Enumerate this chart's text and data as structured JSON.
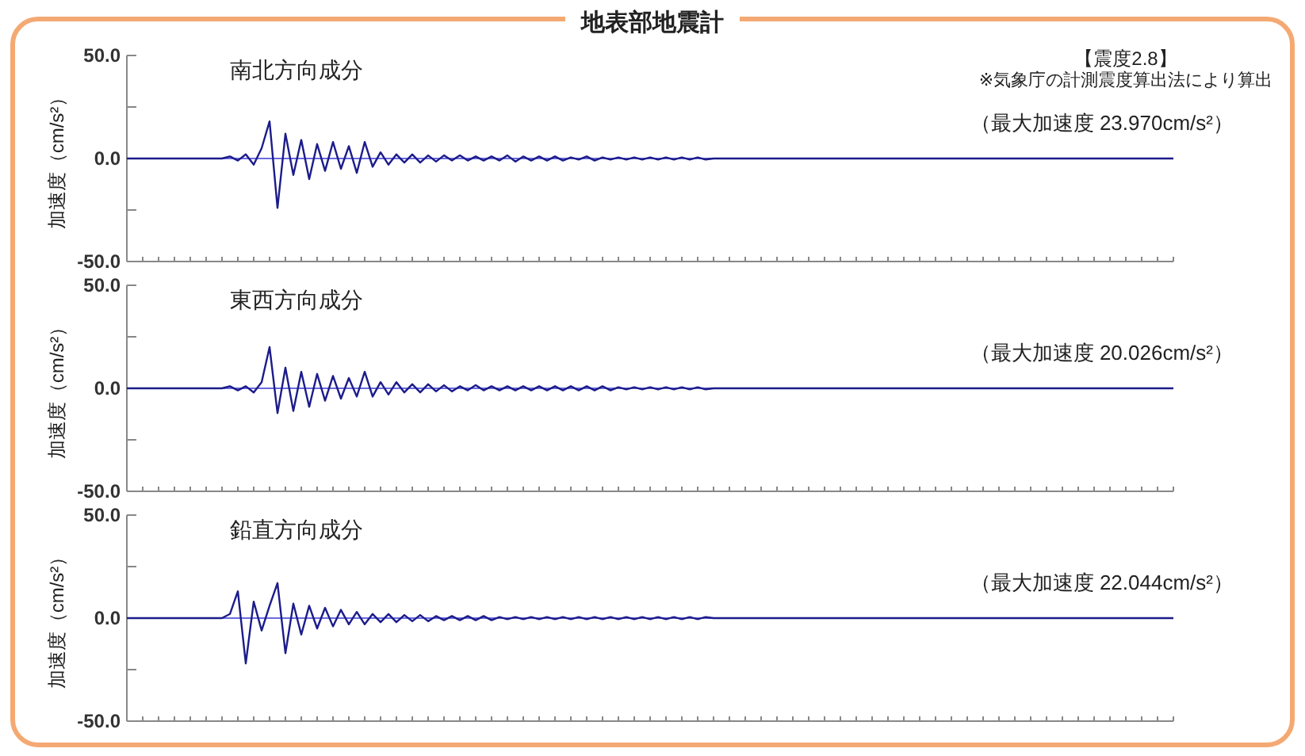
{
  "chart_data": [
    {
      "type": "line",
      "title": "地表部地震計",
      "subtitle": "南北方向成分",
      "ylabel": "加速度（cm/s²）",
      "tick_labels": "y",
      "ylim": [
        -50,
        50
      ],
      "yticks": [
        {
          "value": 50,
          "label": "50.0"
        },
        {
          "value": 25,
          "label": null
        },
        {
          "value": 0,
          "label": "0.0"
        },
        {
          "value": -25,
          "label": null
        },
        {
          "value": -50,
          "label": "-50.0"
        }
      ],
      "annotations": [
        "【震度2.8】",
        "※気象庁の計測震度算出法により算出",
        "（最大加速度 23.970cm/s²）"
      ],
      "ref_lines": [
        {
          "axis": "y",
          "value": 0,
          "color": "#6b6be0"
        }
      ],
      "categories": [
        null,
        null,
        null,
        null,
        null,
        null,
        null,
        null,
        null,
        null,
        null,
        null,
        null,
        null,
        null,
        null,
        null,
        null,
        null,
        null,
        null,
        null,
        null,
        null,
        null,
        null,
        null,
        null,
        null,
        null,
        null,
        null,
        null,
        null,
        null,
        null,
        null,
        null,
        null,
        null,
        null,
        null,
        null,
        null,
        null,
        null,
        null,
        null,
        null,
        null,
        null,
        null,
        null,
        null,
        null,
        null,
        null,
        null,
        null,
        null,
        null,
        null,
        null,
        null,
        null,
        null,
        null,
        null,
        null,
        null,
        null,
        null,
        null,
        null,
        null,
        null,
        null,
        null,
        null,
        null,
        null,
        null,
        null,
        null,
        null,
        null,
        null,
        null,
        null,
        null,
        null,
        null,
        null,
        null,
        null,
        null,
        null,
        null,
        null,
        null,
        null,
        null,
        null,
        null,
        null,
        null,
        null,
        null,
        null,
        null,
        null,
        null,
        null,
        null,
        null,
        null,
        null,
        null,
        null,
        null,
        null,
        null,
        null,
        null,
        null,
        null,
        null,
        null,
        null,
        null,
        null,
        null,
        null
      ],
      "series": [
        {
          "color": "#1c1c8a",
          "values": [
            0,
            0,
            0,
            0,
            0,
            0,
            0,
            0,
            0,
            0,
            0,
            0,
            0,
            1,
            -1,
            2,
            -3,
            5,
            18,
            -24,
            12,
            -8,
            9,
            -10,
            7,
            -6,
            8,
            -5,
            6,
            -7,
            8,
            -4,
            3,
            -3,
            2,
            -2,
            2,
            -2,
            1.5,
            -1.5,
            1.5,
            -1,
            1.5,
            -1,
            1,
            -1,
            1,
            -1,
            1.5,
            -1.5,
            1,
            -1,
            1,
            -1,
            1,
            -1,
            0.5,
            -0.5,
            1,
            -1,
            0.5,
            -0.5,
            0.5,
            -0.5,
            0.5,
            -0.5,
            0.5,
            -0.5,
            0.5,
            -0.5,
            0.5,
            -0.5,
            0.5,
            -0.5,
            0,
            0,
            0,
            0,
            0,
            0,
            0,
            0,
            0,
            0,
            0,
            0,
            0,
            0,
            0,
            0,
            0,
            0,
            0,
            0,
            0,
            0,
            0,
            0,
            0,
            0,
            0,
            0,
            0,
            0,
            0,
            0,
            0,
            0,
            0,
            0,
            0,
            0,
            0,
            0,
            0,
            0,
            0,
            0,
            0,
            0,
            0,
            0,
            0,
            0,
            0,
            0,
            0,
            0,
            0,
            0,
            0,
            0,
            0
          ]
        }
      ]
    },
    {
      "type": "line",
      "subtitle": "東西方向成分",
      "ylabel": "加速度（cm/s²）",
      "tick_labels": "y",
      "ylim": [
        -50,
        50
      ],
      "yticks": [
        {
          "value": 50,
          "label": "50.0"
        },
        {
          "value": 25,
          "label": null
        },
        {
          "value": 0,
          "label": "0.0"
        },
        {
          "value": -25,
          "label": null
        },
        {
          "value": -50,
          "label": "-50.0"
        }
      ],
      "annotations": [
        "（最大加速度 20.026cm/s²）"
      ],
      "ref_lines": [
        {
          "axis": "y",
          "value": 0,
          "color": "#6b6be0"
        }
      ],
      "categories": [
        null,
        null,
        null,
        null,
        null,
        null,
        null,
        null,
        null,
        null,
        null,
        null,
        null,
        null,
        null,
        null,
        null,
        null,
        null,
        null,
        null,
        null,
        null,
        null,
        null,
        null,
        null,
        null,
        null,
        null,
        null,
        null,
        null,
        null,
        null,
        null,
        null,
        null,
        null,
        null,
        null,
        null,
        null,
        null,
        null,
        null,
        null,
        null,
        null,
        null,
        null,
        null,
        null,
        null,
        null,
        null,
        null,
        null,
        null,
        null,
        null,
        null,
        null,
        null,
        null,
        null,
        null,
        null,
        null,
        null,
        null,
        null,
        null,
        null,
        null,
        null,
        null,
        null,
        null,
        null,
        null,
        null,
        null,
        null,
        null,
        null,
        null,
        null,
        null,
        null,
        null,
        null,
        null,
        null,
        null,
        null,
        null,
        null,
        null,
        null,
        null,
        null,
        null,
        null,
        null,
        null,
        null,
        null,
        null,
        null,
        null,
        null,
        null,
        null,
        null,
        null,
        null,
        null,
        null,
        null,
        null,
        null,
        null,
        null,
        null,
        null,
        null,
        null,
        null,
        null,
        null,
        null,
        null
      ],
      "series": [
        {
          "color": "#1c1c8a",
          "values": [
            0,
            0,
            0,
            0,
            0,
            0,
            0,
            0,
            0,
            0,
            0,
            0,
            0,
            1,
            -1,
            1,
            -2,
            3,
            20,
            -12,
            10,
            -11,
            8,
            -9,
            7,
            -6,
            6,
            -5,
            5,
            -4,
            8,
            -4,
            3,
            -3,
            3,
            -2,
            2,
            -2,
            2,
            -1.5,
            1.5,
            -1.5,
            1,
            -1,
            1.5,
            -1,
            1,
            -1,
            1,
            -1,
            1,
            -1,
            1,
            -1,
            1,
            -1,
            1,
            -1,
            1,
            -1,
            1,
            -1,
            0.5,
            -0.5,
            0.5,
            -0.5,
            0.5,
            -0.5,
            0.5,
            -0.5,
            0.5,
            -0.5,
            0.5,
            -0.5,
            0,
            0,
            0,
            0,
            0,
            0,
            0,
            0,
            0,
            0,
            0,
            0,
            0,
            0,
            0,
            0,
            0,
            0,
            0,
            0,
            0,
            0,
            0,
            0,
            0,
            0,
            0,
            0,
            0,
            0,
            0,
            0,
            0,
            0,
            0,
            0,
            0,
            0,
            0,
            0,
            0,
            0,
            0,
            0,
            0,
            0,
            0,
            0,
            0,
            0,
            0,
            0,
            0,
            0,
            0,
            0,
            0,
            0,
            0
          ]
        }
      ]
    },
    {
      "type": "line",
      "subtitle": "鉛直方向成分",
      "ylabel": "加速度（cm/s²）",
      "tick_labels": "y",
      "ylim": [
        -50,
        50
      ],
      "yticks": [
        {
          "value": 50,
          "label": "50.0"
        },
        {
          "value": 25,
          "label": null
        },
        {
          "value": 0,
          "label": "0.0"
        },
        {
          "value": -25,
          "label": null
        },
        {
          "value": -50,
          "label": "-50.0"
        }
      ],
      "annotations": [
        "（最大加速度 22.044cm/s²）"
      ],
      "ref_lines": [
        {
          "axis": "y",
          "value": 0,
          "color": "#6b6be0"
        }
      ],
      "categories": [
        null,
        null,
        null,
        null,
        null,
        null,
        null,
        null,
        null,
        null,
        null,
        null,
        null,
        null,
        null,
        null,
        null,
        null,
        null,
        null,
        null,
        null,
        null,
        null,
        null,
        null,
        null,
        null,
        null,
        null,
        null,
        null,
        null,
        null,
        null,
        null,
        null,
        null,
        null,
        null,
        null,
        null,
        null,
        null,
        null,
        null,
        null,
        null,
        null,
        null,
        null,
        null,
        null,
        null,
        null,
        null,
        null,
        null,
        null,
        null,
        null,
        null,
        null,
        null,
        null,
        null,
        null,
        null,
        null,
        null,
        null,
        null,
        null,
        null,
        null,
        null,
        null,
        null,
        null,
        null,
        null,
        null,
        null,
        null,
        null,
        null,
        null,
        null,
        null,
        null,
        null,
        null,
        null,
        null,
        null,
        null,
        null,
        null,
        null,
        null,
        null,
        null,
        null,
        null,
        null,
        null,
        null,
        null,
        null,
        null,
        null,
        null,
        null,
        null,
        null,
        null,
        null,
        null,
        null,
        null,
        null,
        null,
        null,
        null,
        null,
        null,
        null,
        null,
        null,
        null,
        null,
        null,
        null
      ],
      "series": [
        {
          "color": "#1c1c8a",
          "values": [
            0,
            0,
            0,
            0,
            0,
            0,
            0,
            0,
            0,
            0,
            0,
            0,
            0,
            2,
            13,
            -22,
            8,
            -6,
            6,
            17,
            -17,
            7,
            -8,
            6,
            -5,
            5,
            -4,
            4,
            -3,
            3,
            -3,
            2,
            -2,
            2,
            -2,
            1.5,
            -1.5,
            1.5,
            -1.5,
            1,
            -1,
            1,
            -1,
            1,
            -1,
            1,
            -1,
            0.5,
            -0.5,
            0.5,
            -0.5,
            0.5,
            -0.5,
            0.5,
            -0.5,
            0.5,
            -0.5,
            0.5,
            -0.5,
            0.5,
            -0.5,
            0.5,
            -0.5,
            0.5,
            -0.5,
            0.5,
            -0.5,
            0.5,
            -0.5,
            0.5,
            -0.5,
            0.5,
            -0.5,
            0.5,
            0,
            0,
            0,
            0,
            0,
            0,
            0,
            0,
            0,
            0,
            0,
            0,
            0,
            0,
            0,
            0,
            0,
            0,
            0,
            0,
            0,
            0,
            0,
            0,
            0,
            0,
            0,
            0,
            0,
            0,
            0,
            0,
            0,
            0,
            0,
            0,
            0,
            0,
            0,
            0,
            0,
            0,
            0,
            0,
            0,
            0,
            0,
            0,
            0,
            0,
            0,
            0,
            0,
            0,
            0,
            0,
            0,
            0,
            0
          ]
        }
      ]
    }
  ]
}
